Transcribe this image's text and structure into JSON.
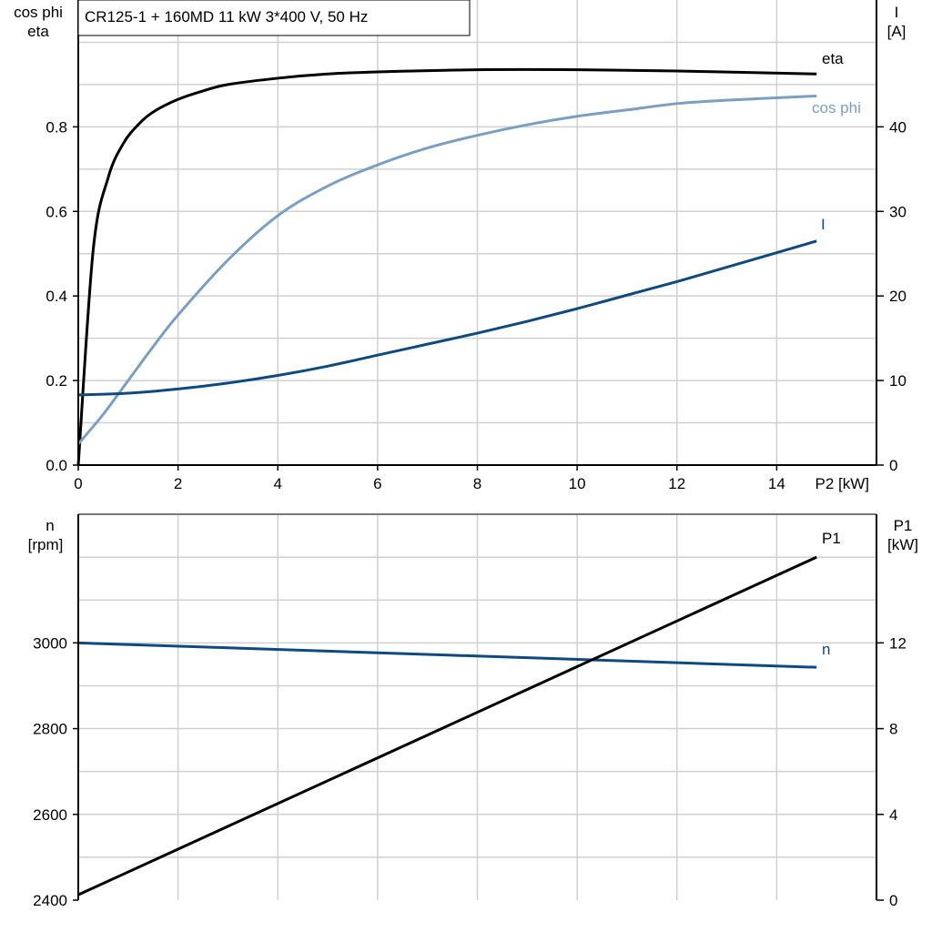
{
  "title": "CR125-1 + 160MD   11 kW   3*400 V, 50 Hz",
  "colors": {
    "eta": "#000000",
    "cos_phi": "#7a9fc0",
    "I": "#0e4a80",
    "n": "#0e4a80",
    "P1": "#000000",
    "grid": "#d0d0d0"
  },
  "chart_data": [
    {
      "type": "line",
      "xlabel": "P2 [kW]",
      "xlim": [
        0,
        16
      ],
      "xticks": [
        "0",
        "2",
        "4",
        "6",
        "8",
        "10",
        "12",
        "14"
      ],
      "ylabel_left": [
        "cos phi",
        "eta"
      ],
      "ylim_left": [
        0,
        1.1
      ],
      "yticks_left": [
        "0.0",
        "0.2",
        "0.4",
        "0.6",
        "0.8"
      ],
      "ylabel_right": [
        "I",
        "[A]"
      ],
      "ylim_right": [
        0,
        55
      ],
      "yticks_right": [
        "0",
        "10",
        "20",
        "30",
        "40"
      ],
      "grid": true,
      "series": [
        {
          "name": "eta",
          "axis": "left",
          "x": [
            0,
            0.3,
            0.6,
            0.9,
            1.2,
            1.5,
            2,
            2.5,
            3,
            4,
            5,
            6,
            8,
            10,
            12,
            14.8
          ],
          "y": [
            0,
            0.51,
            0.68,
            0.76,
            0.805,
            0.835,
            0.865,
            0.885,
            0.9,
            0.915,
            0.925,
            0.93,
            0.935,
            0.935,
            0.932,
            0.925
          ]
        },
        {
          "name": "cos phi",
          "axis": "left",
          "x": [
            0,
            0.5,
            1,
            1.5,
            2,
            3,
            4,
            5,
            6,
            7,
            8,
            9,
            10,
            11,
            12,
            13,
            14.8
          ],
          "y": [
            0.05,
            0.12,
            0.2,
            0.28,
            0.355,
            0.485,
            0.59,
            0.66,
            0.71,
            0.75,
            0.78,
            0.805,
            0.825,
            0.84,
            0.855,
            0.863,
            0.873
          ]
        },
        {
          "name": "I",
          "axis": "right",
          "x": [
            0,
            1,
            2,
            3,
            4,
            5,
            6,
            7,
            8,
            9,
            10,
            11,
            12,
            13,
            14.8
          ],
          "y": [
            8.3,
            8.5,
            9.0,
            9.7,
            10.6,
            11.7,
            13.0,
            14.3,
            15.6,
            17.0,
            18.5,
            20.1,
            21.7,
            23.4,
            26.5
          ]
        }
      ]
    },
    {
      "type": "line",
      "xlim": [
        0,
        16
      ],
      "ylabel_left": [
        "n",
        "[rpm]"
      ],
      "ylim_left": [
        2400,
        3300
      ],
      "yticks_left": [
        "2400",
        "2600",
        "2800",
        "3000"
      ],
      "ylabel_right": [
        "P1",
        "[kW]"
      ],
      "ylim_right": [
        0,
        18
      ],
      "yticks_right": [
        "0",
        "4",
        "8",
        "12"
      ],
      "grid": true,
      "series": [
        {
          "name": "n",
          "axis": "left",
          "x": [
            0,
            14.8
          ],
          "y": [
            3000,
            2943
          ]
        },
        {
          "name": "P1",
          "axis": "right",
          "x": [
            0,
            14.8
          ],
          "y": [
            0.25,
            16.0
          ]
        }
      ]
    }
  ]
}
